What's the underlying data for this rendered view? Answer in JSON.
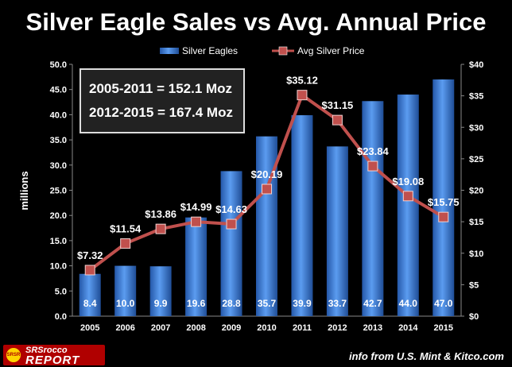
{
  "chart_data": {
    "type": "bar+line",
    "title": "Silver Eagle Sales vs Avg. Annual Price",
    "ylabel": "millions",
    "ylim": [
      0,
      50
    ],
    "y2lim": [
      0,
      40
    ],
    "y_ticks": [
      "0.0",
      "5.0",
      "10.0",
      "15.0",
      "20.0",
      "25.0",
      "30.0",
      "35.0",
      "40.0",
      "45.0",
      "50.0"
    ],
    "y2_ticks": [
      "$0",
      "$5",
      "$10",
      "$15",
      "$20",
      "$25",
      "$30",
      "$35",
      "$40"
    ],
    "categories": [
      "2005",
      "2006",
      "2007",
      "2008",
      "2009",
      "2010",
      "2011",
      "2012",
      "2013",
      "2014",
      "2015"
    ],
    "series": [
      {
        "name": "Silver Eagles",
        "type": "bar",
        "axis": "left",
        "values": [
          8.4,
          10.0,
          9.9,
          19.6,
          28.8,
          35.7,
          39.9,
          33.7,
          42.7,
          44.0,
          47.0
        ],
        "labels": [
          "8.4",
          "10.0",
          "9.9",
          "19.6",
          "28.8",
          "35.7",
          "39.9",
          "33.7",
          "42.7",
          "44.0",
          "47.0"
        ],
        "color": "#3f7fd6"
      },
      {
        "name": "Avg Silver Price",
        "type": "line",
        "axis": "right",
        "values": [
          7.32,
          11.54,
          13.86,
          14.99,
          14.63,
          20.19,
          35.12,
          31.15,
          23.84,
          19.08,
          15.75
        ],
        "labels": [
          "$7.32",
          "$11.54",
          "$13.86",
          "$14.99",
          "$14.63",
          "$20.19",
          "$35.12",
          "$31.15",
          "$23.84",
          "$19.08",
          "$15.75"
        ],
        "color": "#c0504d"
      }
    ],
    "legend_position": "top",
    "grid": false
  },
  "summary": {
    "line1": "2005-2011 = 152.1 Moz",
    "line2": "2012-2015 = 167.4 Moz"
  },
  "logo": {
    "badge": "SRSR",
    "line1": "SRSrocco",
    "line2": "REPORT"
  },
  "source": "info from U.S. Mint & Kitco.com"
}
